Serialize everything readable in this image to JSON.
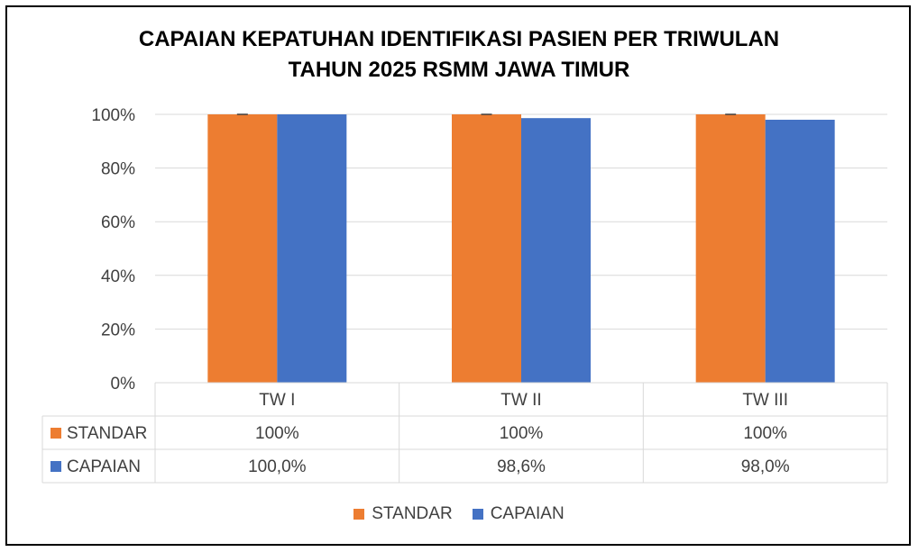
{
  "chart_data": {
    "type": "bar",
    "title_line1": "CAPAIAN KEPATUHAN IDENTIFIKASI PASIEN PER TRIWULAN",
    "title_line2": "TAHUN 2025 RSMM JAWA TIMUR",
    "categories": [
      "TW I",
      "TW II",
      "TW III"
    ],
    "series": [
      {
        "name": "STANDAR",
        "values": [
          100,
          100,
          100
        ],
        "labels": [
          "100%",
          "100%",
          "100%"
        ],
        "color": "#ED7D31"
      },
      {
        "name": "CAPAIAN",
        "values": [
          100.0,
          98.6,
          98.0
        ],
        "labels": [
          "100,0%",
          "98,6%",
          "98,0%"
        ],
        "color": "#4472C4"
      }
    ],
    "y_ticks": [
      "0%",
      "20%",
      "40%",
      "60%",
      "80%",
      "100%"
    ],
    "ylim": [
      0,
      100
    ],
    "grid": true,
    "data_table": true,
    "legend_position": "bottom"
  }
}
